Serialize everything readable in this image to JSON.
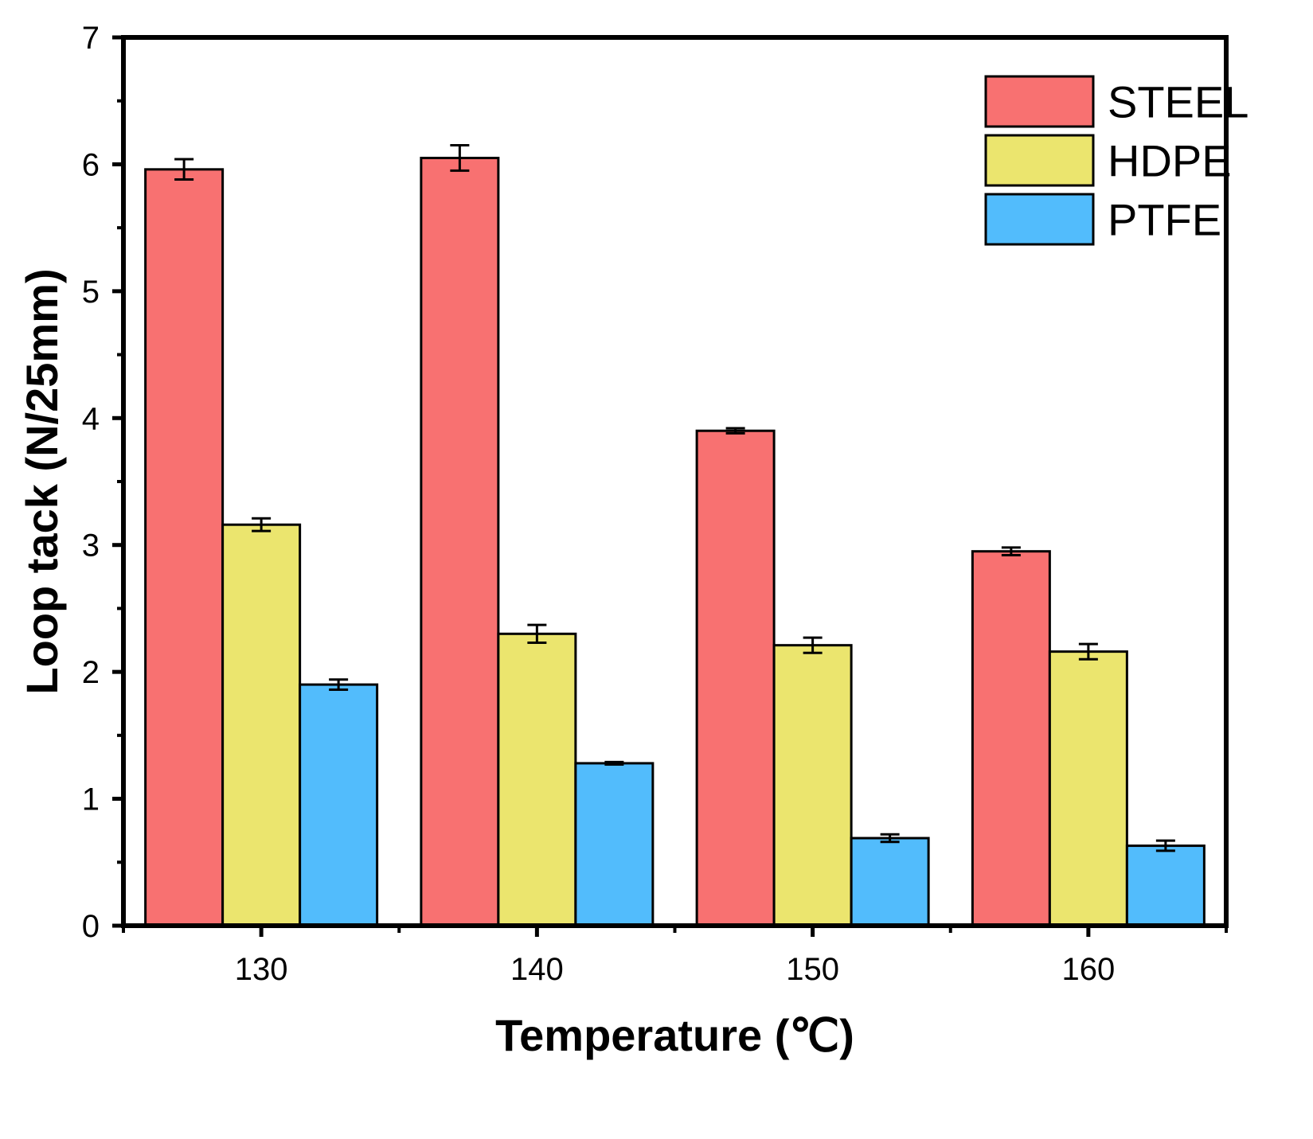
{
  "chart_data": {
    "type": "bar",
    "title": "",
    "xlabel": "Temperature (℃)",
    "ylabel": "Loop tack (N/25mm)",
    "categories": [
      "130",
      "140",
      "150",
      "160"
    ],
    "ylim": [
      0,
      7
    ],
    "yticks": [
      "0",
      "1",
      "2",
      "3",
      "4",
      "5",
      "6",
      "7"
    ],
    "grid": false,
    "legend_position": "top-right",
    "series": [
      {
        "name": "STEEL",
        "color": "#F87171",
        "values": [
          5.96,
          6.05,
          3.9,
          2.95
        ],
        "errors": [
          0.08,
          0.1,
          0.02,
          0.03
        ]
      },
      {
        "name": "HDPE",
        "color": "#EBE56E",
        "values": [
          3.16,
          2.3,
          2.21,
          2.16
        ],
        "errors": [
          0.05,
          0.07,
          0.06,
          0.06
        ]
      },
      {
        "name": "PTFE",
        "color": "#52BCFC",
        "values": [
          1.9,
          1.28,
          0.69,
          0.63
        ],
        "errors": [
          0.04,
          0.01,
          0.03,
          0.04
        ]
      }
    ]
  }
}
